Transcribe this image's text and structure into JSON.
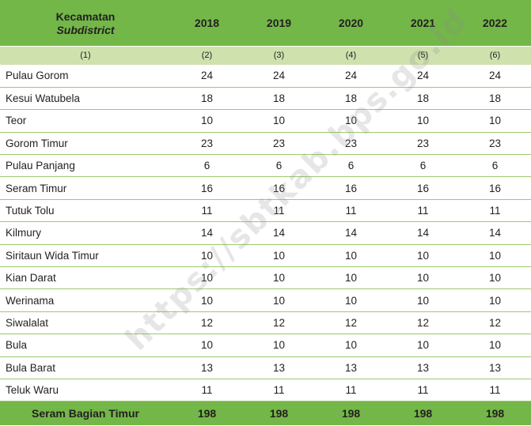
{
  "header": {
    "col_name_id": "Kecamatan",
    "col_name_en": "Subdistrict",
    "years": [
      "2018",
      "2019",
      "2020",
      "2021",
      "2022"
    ]
  },
  "col_numbers": [
    "(1)",
    "(2)",
    "(3)",
    "(4)",
    "(5)",
    "(6)"
  ],
  "rows": [
    {
      "name": "Pulau Gorom",
      "values": [
        "24",
        "24",
        "24",
        "24",
        "24"
      ]
    },
    {
      "name": "Kesui Watubela",
      "values": [
        "18",
        "18",
        "18",
        "18",
        "18"
      ]
    },
    {
      "name": "Teor",
      "values": [
        "10",
        "10",
        "10",
        "10",
        "10"
      ]
    },
    {
      "name": "Gorom Timur",
      "values": [
        "23",
        "23",
        "23",
        "23",
        "23"
      ]
    },
    {
      "name": "Pulau Panjang",
      "values": [
        "6",
        "6",
        "6",
        "6",
        "6"
      ]
    },
    {
      "name": "Seram Timur",
      "values": [
        "16",
        "16",
        "16",
        "16",
        "16"
      ]
    },
    {
      "name": "Tutuk Tolu",
      "values": [
        "11",
        "11",
        "11",
        "11",
        "11"
      ]
    },
    {
      "name": "Kilmury",
      "values": [
        "14",
        "14",
        "14",
        "14",
        "14"
      ]
    },
    {
      "name": "Siritaun Wida Timur",
      "values": [
        "10",
        "10",
        "10",
        "10",
        "10"
      ]
    },
    {
      "name": "Kian  Darat",
      "values": [
        "10",
        "10",
        "10",
        "10",
        "10"
      ]
    },
    {
      "name": "Werinama",
      "values": [
        "10",
        "10",
        "10",
        "10",
        "10"
      ]
    },
    {
      "name": "Siwalalat",
      "values": [
        "12",
        "12",
        "12",
        "12",
        "12"
      ]
    },
    {
      "name": "Bula",
      "values": [
        "10",
        "10",
        "10",
        "10",
        "10"
      ]
    },
    {
      "name": "Bula Barat",
      "values": [
        "13",
        "13",
        "13",
        "13",
        "13"
      ]
    },
    {
      "name": "Teluk Waru",
      "values": [
        "11",
        "11",
        "11",
        "11",
        "11"
      ]
    }
  ],
  "total": {
    "name": "Seram Bagian Timur",
    "values": [
      "198",
      "198",
      "198",
      "198",
      "198"
    ]
  },
  "watermark": "https://sbtkab.bps.go.id",
  "colors": {
    "header_green": "#73b748",
    "light_green": "#cfe2ad"
  }
}
